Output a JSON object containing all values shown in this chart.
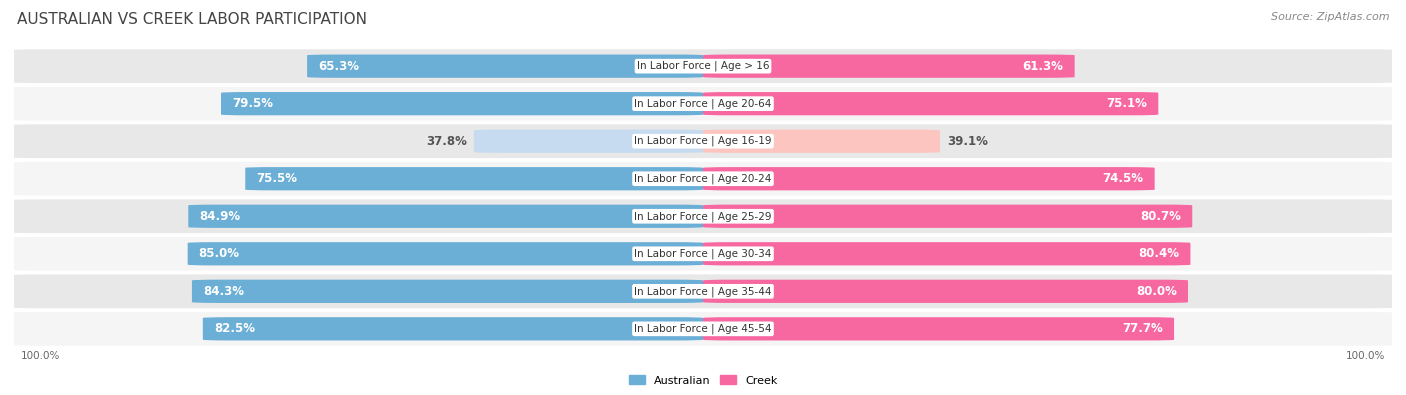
{
  "title": "AUSTRALIAN VS CREEK LABOR PARTICIPATION",
  "source": "Source: ZipAtlas.com",
  "categories": [
    "In Labor Force | Age > 16",
    "In Labor Force | Age 20-64",
    "In Labor Force | Age 16-19",
    "In Labor Force | Age 20-24",
    "In Labor Force | Age 25-29",
    "In Labor Force | Age 30-34",
    "In Labor Force | Age 35-44",
    "In Labor Force | Age 45-54"
  ],
  "australian": [
    65.3,
    79.5,
    37.8,
    75.5,
    84.9,
    85.0,
    84.3,
    82.5
  ],
  "creek": [
    61.3,
    75.1,
    39.1,
    74.5,
    80.7,
    80.4,
    80.0,
    77.7
  ],
  "aus_color": "#6baed6",
  "aus_light": "#c6dbef",
  "creek_color": "#f768a1",
  "creek_light": "#fcc5c0",
  "row_bg_dark": "#e8e8e8",
  "row_bg_light": "#f5f5f5",
  "fig_bg": "#ffffff",
  "title_color": "#444444",
  "source_color": "#888888",
  "title_fontsize": 11,
  "source_fontsize": 8,
  "value_fontsize": 8.5,
  "cat_fontsize": 7.5,
  "axis_label_fontsize": 7.5,
  "legend_australian": "Australian",
  "legend_creek": "Creek",
  "max_val": 100.0
}
